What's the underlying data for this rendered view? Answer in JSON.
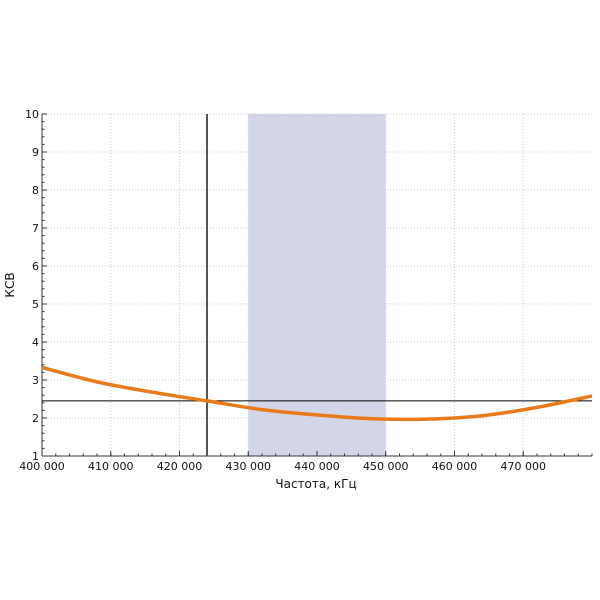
{
  "chart_data": {
    "type": "line",
    "title": "",
    "xlabel": "Частота, кГц",
    "ylabel": "КСВ",
    "xlim": [
      400000,
      480000
    ],
    "ylim": [
      1,
      10
    ],
    "grid": true,
    "x_ticks": [
      400000,
      410000,
      420000,
      430000,
      440000,
      450000,
      460000,
      470000
    ],
    "x_tick_labels": [
      "400 000",
      "410 000",
      "420 000",
      "430 000",
      "440 000",
      "450 000",
      "460 000",
      "470 000"
    ],
    "y_ticks": [
      1,
      2,
      3,
      4,
      5,
      6,
      7,
      8,
      9,
      10
    ],
    "y_tick_labels": [
      "1",
      "2",
      "3",
      "4",
      "5",
      "6",
      "7",
      "8",
      "9",
      "10"
    ],
    "series": [
      {
        "x": [
          400000,
          408000,
          416000,
          424000,
          432000,
          440000,
          448000,
          456000,
          464000,
          472000,
          480000
        ],
        "y": [
          3.33,
          2.95,
          2.68,
          2.45,
          2.22,
          2.08,
          1.98,
          1.97,
          2.06,
          2.28,
          2.58
        ],
        "color": "#e87a1a"
      }
    ],
    "shaded_band": {
      "x_range": [
        430000,
        450000
      ],
      "color": "#d3d5e8"
    },
    "reference_hline": {
      "y": 2.45,
      "color": "#000000"
    },
    "reference_vline": {
      "x": 424000,
      "color": "#555555"
    }
  }
}
